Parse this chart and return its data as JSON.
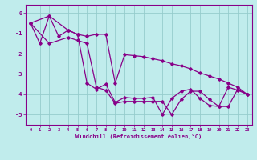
{
  "xlabel": "Windchill (Refroidissement éolien,°C)",
  "bg_color": "#c0ecec",
  "grid_color": "#96cccc",
  "line_color": "#880088",
  "ylim": [
    -5.5,
    0.4
  ],
  "xlim": [
    -0.5,
    23.5
  ],
  "yticks": [
    0,
    -1,
    -2,
    -3,
    -4,
    -5
  ],
  "ytick_labels": [
    "0",
    "-1",
    "-2",
    "-3",
    "-4",
    "-5"
  ],
  "xticks": [
    0,
    1,
    2,
    3,
    4,
    5,
    6,
    7,
    8,
    9,
    10,
    11,
    12,
    13,
    14,
    15,
    16,
    17,
    18,
    19,
    20,
    21,
    22,
    23
  ],
  "line1_x": [
    0,
    1,
    2,
    3,
    4,
    5,
    6,
    7,
    8,
    9,
    10,
    11,
    12,
    13,
    14,
    15,
    16,
    17,
    18,
    19,
    20,
    21,
    22,
    23
  ],
  "line1_y": [
    -0.5,
    -1.5,
    -0.15,
    -1.15,
    -0.85,
    -1.05,
    -3.45,
    -3.75,
    -3.5,
    -4.4,
    -4.15,
    -4.2,
    -4.2,
    -4.15,
    -5.0,
    -4.2,
    -3.85,
    -3.75,
    -4.2,
    -4.55,
    -4.6,
    -3.65,
    -3.8,
    -4.0
  ],
  "line2_x": [
    0,
    2,
    4,
    5,
    6,
    7,
    8,
    9,
    10,
    11,
    12,
    13,
    14,
    15,
    16,
    17,
    18,
    19,
    20,
    21,
    22,
    23
  ],
  "line2_y": [
    -0.5,
    -0.15,
    -0.85,
    -1.05,
    -1.15,
    -1.05,
    -1.05,
    -3.45,
    -2.05,
    -2.1,
    -2.15,
    -2.25,
    -2.35,
    -2.5,
    -2.6,
    -2.75,
    -2.95,
    -3.1,
    -3.25,
    -3.45,
    -3.65,
    -4.0
  ],
  "line3_x": [
    0,
    2,
    4,
    5,
    6,
    7,
    8,
    9,
    10,
    11,
    12,
    13,
    14,
    15,
    16,
    17,
    18,
    19,
    20,
    21,
    22,
    23
  ],
  "line3_y": [
    -0.5,
    -1.5,
    -1.2,
    -1.35,
    -1.5,
    -3.65,
    -3.8,
    -4.45,
    -4.35,
    -4.35,
    -4.35,
    -4.35,
    -4.35,
    -5.0,
    -4.25,
    -3.85,
    -3.85,
    -4.25,
    -4.6,
    -4.6,
    -3.75,
    -4.0
  ]
}
